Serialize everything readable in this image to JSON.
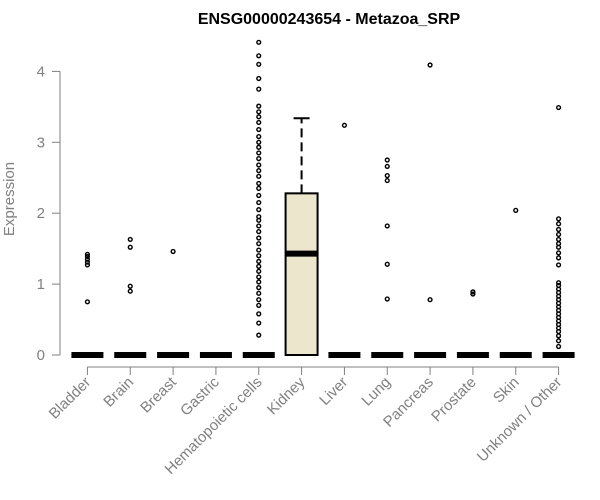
{
  "chart_data": {
    "type": "box",
    "title": "ENSG00000243654 - Metazoa_SRP",
    "ylabel": "Expression",
    "xlabel": "",
    "ylim": [
      0,
      4.4
    ],
    "yticks": [
      0,
      1,
      2,
      3,
      4
    ],
    "grid": false,
    "legend": "none",
    "colors": {
      "box_fill": "#ece6cd",
      "ink": "#000000",
      "axis": "#808080"
    },
    "categories": [
      "Bladder",
      "Brain",
      "Breast",
      "Gastric",
      "Hematopoietic cells",
      "Kidney",
      "Liver",
      "Lung",
      "Pancreas",
      "Prostate",
      "Skin",
      "Unknown / Other"
    ],
    "boxes": [
      {
        "category": "Bladder",
        "q1": 0,
        "median": 0,
        "q3": 0,
        "whisker_low": 0,
        "whisker_high": 0,
        "outliers": [
          0.75,
          1.27,
          1.31,
          1.35,
          1.39,
          1.42
        ]
      },
      {
        "category": "Brain",
        "q1": 0,
        "median": 0,
        "q3": 0,
        "whisker_low": 0,
        "whisker_high": 0,
        "outliers": [
          0.9,
          0.97,
          1.52,
          1.63
        ]
      },
      {
        "category": "Breast",
        "q1": 0,
        "median": 0,
        "q3": 0,
        "whisker_low": 0,
        "whisker_high": 0,
        "outliers": [
          1.46
        ]
      },
      {
        "category": "Gastric",
        "q1": 0,
        "median": 0,
        "q3": 0,
        "whisker_low": 0,
        "whisker_high": 0,
        "outliers": []
      },
      {
        "category": "Hematopoietic cells",
        "q1": 0,
        "median": 0,
        "q3": 0,
        "whisker_low": 0,
        "whisker_high": 0,
        "outliers": [
          0.28,
          0.45,
          0.58,
          0.7,
          0.78,
          0.87,
          0.95,
          1.03,
          1.1,
          1.18,
          1.25,
          1.32,
          1.4,
          1.48,
          1.57,
          1.65,
          1.74,
          1.82,
          1.9,
          1.95,
          2.05,
          2.15,
          2.25,
          2.35,
          2.42,
          2.52,
          2.6,
          2.68,
          2.77,
          2.85,
          2.93,
          3.0,
          3.08,
          3.18,
          3.28,
          3.36,
          3.43,
          3.51,
          3.75,
          3.9,
          4.1,
          4.22,
          4.41
        ]
      },
      {
        "category": "Kidney",
        "q1": 0,
        "median": 1.43,
        "q3": 2.28,
        "whisker_low": 0,
        "whisker_high": 3.34,
        "outliers": []
      },
      {
        "category": "Liver",
        "q1": 0,
        "median": 0,
        "q3": 0,
        "whisker_low": 0,
        "whisker_high": 0,
        "outliers": [
          3.24
        ]
      },
      {
        "category": "Lung",
        "q1": 0,
        "median": 0,
        "q3": 0,
        "whisker_low": 0,
        "whisker_high": 0,
        "outliers": [
          0.79,
          1.28,
          1.82,
          2.46,
          2.53,
          2.66,
          2.75
        ]
      },
      {
        "category": "Pancreas",
        "q1": 0,
        "median": 0,
        "q3": 0,
        "whisker_low": 0,
        "whisker_high": 0,
        "outliers": [
          0.78,
          4.09
        ]
      },
      {
        "category": "Prostate",
        "q1": 0,
        "median": 0,
        "q3": 0,
        "whisker_low": 0,
        "whisker_high": 0,
        "outliers": [
          0.86,
          0.89
        ]
      },
      {
        "category": "Skin",
        "q1": 0,
        "median": 0,
        "q3": 0,
        "whisker_low": 0,
        "whisker_high": 0,
        "outliers": [
          2.04
        ]
      },
      {
        "category": "Unknown / Other",
        "q1": 0,
        "median": 0,
        "q3": 0,
        "whisker_low": 0,
        "whisker_high": 0,
        "outliers": [
          0.12,
          0.2,
          0.27,
          0.33,
          0.38,
          0.43,
          0.48,
          0.53,
          0.58,
          0.63,
          0.68,
          0.73,
          0.78,
          0.83,
          0.88,
          0.93,
          0.98,
          1.02,
          1.27,
          1.37,
          1.44,
          1.52,
          1.57,
          1.63,
          1.7,
          1.77,
          1.85,
          1.92,
          3.49
        ]
      }
    ]
  }
}
